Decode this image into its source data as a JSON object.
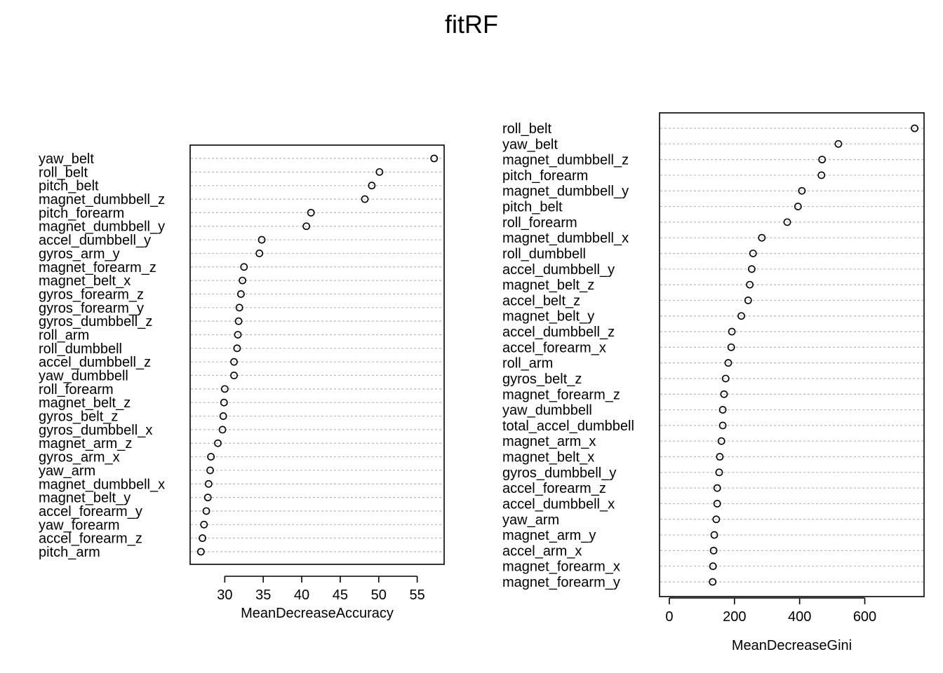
{
  "title": "fitRF",
  "chart_data": [
    {
      "type": "scatter",
      "subtype": "dotchart",
      "xlabel": "MeanDecreaseAccuracy",
      "ylabel": "",
      "xlim": [
        25.5,
        58.5
      ],
      "xticks": [
        30,
        35,
        40,
        45,
        50,
        55
      ],
      "grid": "dotted horizontal",
      "categories": [
        "yaw_belt",
        "roll_belt",
        "pitch_belt",
        "magnet_dumbbell_z",
        "pitch_forearm",
        "magnet_dumbbell_y",
        "accel_dumbbell_y",
        "gyros_arm_y",
        "magnet_forearm_z",
        "magnet_belt_x",
        "gyros_forearm_z",
        "gyros_forearm_y",
        "gyros_dumbbell_z",
        "roll_arm",
        "roll_dumbbell",
        "accel_dumbbell_z",
        "yaw_dumbbell",
        "roll_forearm",
        "magnet_belt_z",
        "gyros_belt_z",
        "gyros_dumbbell_x",
        "magnet_arm_z",
        "gyros_arm_x",
        "yaw_arm",
        "magnet_dumbbell_x",
        "magnet_belt_y",
        "accel_forearm_y",
        "yaw_forearm",
        "accel_forearm_z",
        "pitch_arm"
      ],
      "values": [
        57.2,
        50.1,
        49.1,
        48.2,
        41.2,
        40.6,
        34.8,
        34.5,
        32.5,
        32.3,
        32.1,
        31.9,
        31.8,
        31.7,
        31.6,
        31.2,
        31.2,
        30.0,
        29.9,
        29.8,
        29.7,
        29.1,
        28.2,
        28.1,
        27.9,
        27.8,
        27.6,
        27.3,
        27.1,
        26.9
      ]
    },
    {
      "type": "scatter",
      "subtype": "dotchart",
      "xlabel": "MeanDecreaseGini",
      "ylabel": "",
      "xlim": [
        -30,
        782
      ],
      "xticks": [
        0,
        200,
        400,
        600
      ],
      "grid": "dotted horizontal",
      "categories": [
        "roll_belt",
        "yaw_belt",
        "magnet_dumbbell_z",
        "pitch_forearm",
        "magnet_dumbbell_y",
        "pitch_belt",
        "roll_forearm",
        "magnet_dumbbell_x",
        "roll_dumbbell",
        "accel_dumbbell_y",
        "magnet_belt_z",
        "accel_belt_z",
        "magnet_belt_y",
        "accel_dumbbell_z",
        "accel_forearm_x",
        "roll_arm",
        "gyros_belt_z",
        "magnet_forearm_z",
        "yaw_dumbbell",
        "total_accel_dumbbell",
        "magnet_arm_x",
        "magnet_belt_x",
        "gyros_dumbbell_y",
        "accel_forearm_z",
        "accel_dumbbell_x",
        "yaw_arm",
        "magnet_arm_y",
        "accel_arm_x",
        "magnet_forearm_x",
        "magnet_forearm_y"
      ],
      "values": [
        753,
        519,
        469,
        467,
        407,
        395,
        362,
        284,
        257,
        253,
        247,
        242,
        221,
        192,
        190,
        181,
        173,
        168,
        164,
        164,
        160,
        155,
        153,
        147,
        147,
        144,
        138,
        136,
        134,
        133
      ]
    }
  ]
}
